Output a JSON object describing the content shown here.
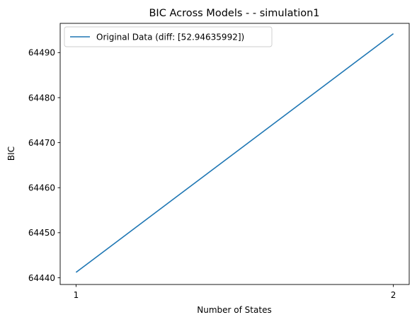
{
  "chart_data": {
    "type": "line",
    "title": "BIC Across Models -  - simulation1",
    "xlabel": "Number of States",
    "ylabel": "BIC",
    "x": [
      1,
      2
    ],
    "xticks": [
      1,
      2
    ],
    "yticks": [
      64440,
      64450,
      64460,
      64470,
      64480,
      64490
    ],
    "xlim": [
      0.95,
      2.05
    ],
    "ylim": [
      64438.5,
      64496.5
    ],
    "grid": false,
    "legend_position": "top-left",
    "series": [
      {
        "name": "Original Data (diff: [52.94635992])",
        "color": "#1f77b4",
        "values": [
          64441.2,
          64494.2
        ]
      }
    ]
  }
}
